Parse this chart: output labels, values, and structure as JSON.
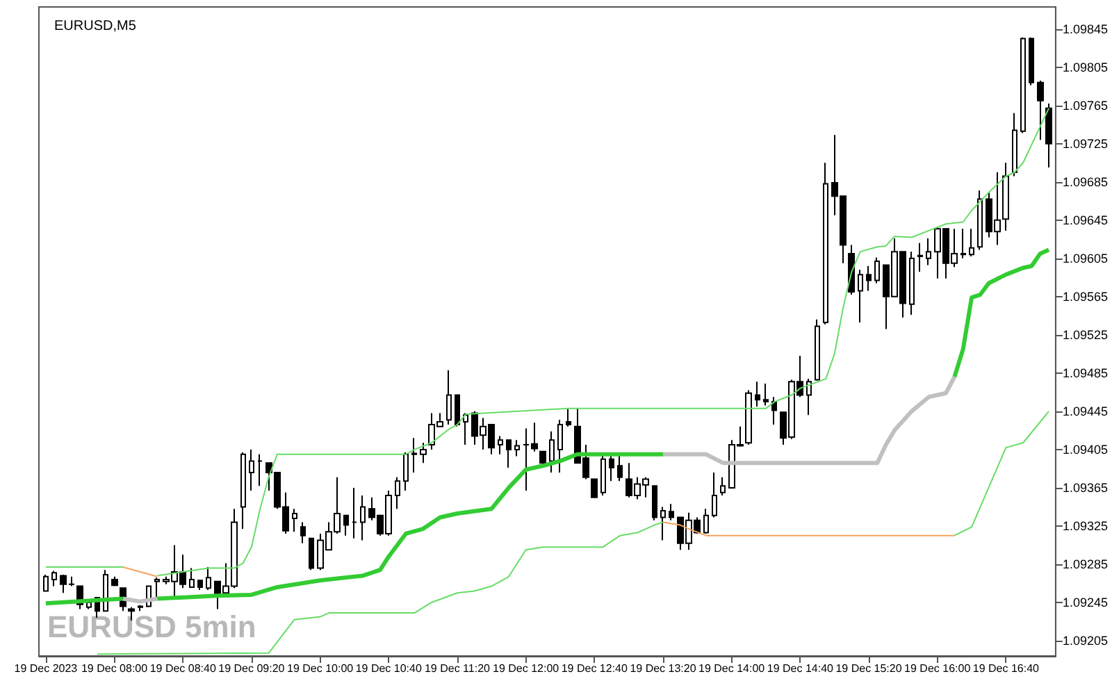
{
  "chart_data": {
    "type": "candlestick",
    "title": "EURUSD,M5",
    "annotations": [
      "EURUSD 5min"
    ],
    "x": [
      "2023-12-19T07:20",
      "2023-12-19T07:25",
      "2023-12-19T07:30",
      "2023-12-19T07:35",
      "2023-12-19T07:40",
      "2023-12-19T07:45",
      "2023-12-19T07:50",
      "2023-12-19T07:55",
      "2023-12-19T08:00",
      "2023-12-19T08:05",
      "2023-12-19T08:10",
      "2023-12-19T08:15",
      "2023-12-19T08:20",
      "2023-12-19T08:25",
      "2023-12-19T08:30",
      "2023-12-19T08:35",
      "2023-12-19T08:40",
      "2023-12-19T08:45",
      "2023-12-19T08:50",
      "2023-12-19T08:55",
      "2023-12-19T09:00",
      "2023-12-19T09:05",
      "2023-12-19T09:10",
      "2023-12-19T09:15",
      "2023-12-19T09:20",
      "2023-12-19T09:25",
      "2023-12-19T09:30",
      "2023-12-19T09:35",
      "2023-12-19T09:40",
      "2023-12-19T09:45",
      "2023-12-19T09:50",
      "2023-12-19T09:55",
      "2023-12-19T10:00",
      "2023-12-19T10:05",
      "2023-12-19T10:10",
      "2023-12-19T10:15",
      "2023-12-19T10:20",
      "2023-12-19T10:25",
      "2023-12-19T10:30",
      "2023-12-19T10:35",
      "2023-12-19T10:40",
      "2023-12-19T10:45",
      "2023-12-19T10:50",
      "2023-12-19T10:55",
      "2023-12-19T11:00",
      "2023-12-19T11:05",
      "2023-12-19T11:10",
      "2023-12-19T11:15",
      "2023-12-19T11:20",
      "2023-12-19T11:25",
      "2023-12-19T11:30",
      "2023-12-19T11:35",
      "2023-12-19T11:40",
      "2023-12-19T11:45",
      "2023-12-19T11:50",
      "2023-12-19T11:55",
      "2023-12-19T12:00",
      "2023-12-19T12:05",
      "2023-12-19T12:10",
      "2023-12-19T12:15",
      "2023-12-19T12:20",
      "2023-12-19T12:25",
      "2023-12-19T12:30",
      "2023-12-19T12:35",
      "2023-12-19T12:40",
      "2023-12-19T12:45",
      "2023-12-19T12:50",
      "2023-12-19T12:55",
      "2023-12-19T13:00",
      "2023-12-19T13:05",
      "2023-12-19T13:10",
      "2023-12-19T13:15",
      "2023-12-19T13:20",
      "2023-12-19T13:25",
      "2023-12-19T13:30",
      "2023-12-19T13:35",
      "2023-12-19T13:40",
      "2023-12-19T13:45",
      "2023-12-19T13:50",
      "2023-12-19T13:55",
      "2023-12-19T14:00",
      "2023-12-19T14:05",
      "2023-12-19T14:10",
      "2023-12-19T14:15",
      "2023-12-19T14:20",
      "2023-12-19T14:25",
      "2023-12-19T14:30",
      "2023-12-19T14:35",
      "2023-12-19T14:40",
      "2023-12-19T14:45",
      "2023-12-19T14:50",
      "2023-12-19T14:55",
      "2023-12-19T15:00",
      "2023-12-19T15:05",
      "2023-12-19T15:10",
      "2023-12-19T15:15",
      "2023-12-19T15:20",
      "2023-12-19T15:25",
      "2023-12-19T15:30",
      "2023-12-19T15:35",
      "2023-12-19T15:40",
      "2023-12-19T15:45",
      "2023-12-19T15:50",
      "2023-12-19T15:55",
      "2023-12-19T16:00",
      "2023-12-19T16:05",
      "2023-12-19T16:10",
      "2023-12-19T16:15",
      "2023-12-19T16:20",
      "2023-12-19T16:25",
      "2023-12-19T16:30",
      "2023-12-19T16:35",
      "2023-12-19T16:40",
      "2023-12-19T16:45",
      "2023-12-19T16:50",
      "2023-12-19T16:55",
      "2023-12-19T17:00",
      "2023-12-19T17:05"
    ],
    "xlim": [
      "2023-12-19T07:16",
      "2023-12-19T17:09"
    ],
    "xticks": [
      {
        "value": "2023-12-19T07:20",
        "label": "19 Dec 2023"
      },
      {
        "value": "2023-12-19T08:00",
        "label": "19 Dec 08:00"
      },
      {
        "value": "2023-12-19T08:40",
        "label": "19 Dec 08:40"
      },
      {
        "value": "2023-12-19T09:20",
        "label": "19 Dec 09:20"
      },
      {
        "value": "2023-12-19T10:00",
        "label": "19 Dec 10:00"
      },
      {
        "value": "2023-12-19T10:40",
        "label": "19 Dec 10:40"
      },
      {
        "value": "2023-12-19T11:20",
        "label": "19 Dec 11:20"
      },
      {
        "value": "2023-12-19T12:00",
        "label": "19 Dec 12:00"
      },
      {
        "value": "2023-12-19T12:40",
        "label": "19 Dec 12:40"
      },
      {
        "value": "2023-12-19T13:20",
        "label": "19 Dec 13:20"
      },
      {
        "value": "2023-12-19T14:00",
        "label": "19 Dec 14:00"
      },
      {
        "value": "2023-12-19T14:40",
        "label": "19 Dec 14:40"
      },
      {
        "value": "2023-12-19T15:20",
        "label": "19 Dec 15:20"
      },
      {
        "value": "2023-12-19T16:00",
        "label": "19 Dec 16:00"
      },
      {
        "value": "2023-12-19T16:40",
        "label": "19 Dec 16:40"
      }
    ],
    "ylim": [
      1.09189,
      1.09868
    ],
    "yticks": [
      1.09205,
      1.09245,
      1.09285,
      1.09325,
      1.09365,
      1.09405,
      1.09445,
      1.09485,
      1.09525,
      1.09565,
      1.09605,
      1.09645,
      1.09685,
      1.09725,
      1.09765,
      1.09805,
      1.09845
    ],
    "grid": false,
    "series": [
      {
        "type": "line",
        "color": "#66dd66",
        "x": [
          "2023-12-19T07:20",
          "2023-12-19T08:05",
          "2023-12-19T08:15",
          "2023-12-19T08:25",
          "2023-12-19T08:55",
          "2023-12-19T09:10",
          "2023-12-19T09:15",
          "2023-12-19T09:20",
          "2023-12-19T09:25",
          "2023-12-19T09:30",
          "2023-12-19T09:35",
          "2023-12-19T10:50",
          "2023-12-19T10:55",
          "2023-12-19T11:05",
          "2023-12-19T11:15",
          "2023-12-19T11:20",
          "2023-12-19T11:25",
          "2023-12-19T12:25",
          "2023-12-19T14:20",
          "2023-12-19T14:25",
          "2023-12-19T14:35",
          "2023-12-19T14:40",
          "2023-12-19T14:55",
          "2023-12-19T15:00",
          "2023-12-19T15:05",
          "2023-12-19T15:10",
          "2023-12-19T15:15",
          "2023-12-19T15:25",
          "2023-12-19T15:30",
          "2023-12-19T15:35",
          "2023-12-19T15:45",
          "2023-12-19T15:55",
          "2023-12-19T16:05",
          "2023-12-19T16:15",
          "2023-12-19T16:20",
          "2023-12-19T16:30",
          "2023-12-19T16:40",
          "2023-12-19T16:45",
          "2023-12-19T16:50",
          "2023-12-19T17:00",
          "2023-12-19T17:05"
        ],
        "values": [
          1.09282,
          1.09282,
          null,
          1.09273,
          1.09281,
          1.09281,
          1.09286,
          1.09303,
          1.09343,
          1.09376,
          1.094,
          1.094,
          1.09405,
          1.09412,
          1.09426,
          1.09431,
          1.09442,
          1.09448,
          1.09448,
          1.09455,
          1.09462,
          1.09469,
          1.09479,
          1.09505,
          1.09553,
          1.09591,
          1.09612,
          1.09617,
          1.09618,
          1.09628,
          1.09627,
          1.09634,
          1.09641,
          1.09643,
          1.09655,
          1.09674,
          1.09691,
          1.09695,
          1.09705,
          1.09743,
          1.09762
        ]
      },
      {
        "type": "line",
        "color": "#66dd66",
        "x": [
          "2023-12-19T07:50",
          "2023-12-19T09:30",
          "2023-12-19T09:45",
          "2023-12-19T10:00",
          "2023-12-19T10:05",
          "2023-12-19T10:55",
          "2023-12-19T11:05",
          "2023-12-19T11:20",
          "2023-12-19T11:30",
          "2023-12-19T11:40",
          "2023-12-19T11:50",
          "2023-12-19T12:00",
          "2023-12-19T12:10",
          "2023-12-19T12:45",
          "2023-12-19T12:55",
          "2023-12-19T13:05",
          "2023-12-19T13:15",
          "2023-12-19T13:20",
          "2023-12-19T14:50",
          "2023-12-19T16:10",
          "2023-12-19T16:20",
          "2023-12-19T16:40",
          "2023-12-19T16:50",
          "2023-12-19T17:05"
        ],
        "values": [
          1.09191,
          1.09192,
          1.09227,
          1.0923,
          1.09234,
          1.09234,
          1.09245,
          1.09255,
          1.09257,
          1.09262,
          1.09272,
          1.093,
          1.09303,
          1.09303,
          1.09315,
          1.09318,
          1.09326,
          1.09329,
          null,
          1.09315,
          1.09324,
          1.09407,
          1.09412,
          1.09445
        ]
      },
      {
        "type": "line",
        "color": "#f4a460",
        "x": [
          "2023-12-19T08:05",
          "2023-12-19T08:25",
          "2023-12-19T10:40",
          "2023-12-19T13:20",
          "2023-12-19T13:30",
          "2023-12-19T13:35",
          "2023-12-19T13:45",
          "2023-12-19T16:10"
        ],
        "values": [
          1.09282,
          1.09272,
          null,
          1.09329,
          1.09326,
          1.09322,
          1.09315,
          1.09315
        ]
      },
      {
        "type": "line",
        "color": "#33cc33",
        "x": [
          "2023-12-19T07:20",
          "2023-12-19T08:05",
          "2023-12-19T08:10",
          "2023-12-19T08:25",
          "2023-12-19T09:00",
          "2023-12-19T09:20",
          "2023-12-19T09:35",
          "2023-12-19T10:00",
          "2023-12-19T10:25",
          "2023-12-19T10:35",
          "2023-12-19T10:40",
          "2023-12-19T10:50",
          "2023-12-19T11:00",
          "2023-12-19T11:10",
          "2023-12-19T11:20",
          "2023-12-19T11:40",
          "2023-12-19T11:50",
          "2023-12-19T12:00",
          "2023-12-19T12:10",
          "2023-12-19T12:20",
          "2023-12-19T12:30",
          "2023-12-19T13:20",
          "2023-12-19T14:00",
          "2023-12-19T16:10",
          "2023-12-19T16:15",
          "2023-12-19T16:20",
          "2023-12-19T16:25",
          "2023-12-19T16:30",
          "2023-12-19T16:40",
          "2023-12-19T16:50",
          "2023-12-19T16:55",
          "2023-12-19T17:00",
          "2023-12-19T17:05"
        ],
        "values": [
          1.09244,
          1.09249,
          null,
          1.09249,
          1.09252,
          1.09253,
          1.09261,
          1.09268,
          1.09273,
          1.09279,
          1.09293,
          1.09317,
          1.09322,
          1.09334,
          1.09338,
          1.09343,
          1.09365,
          1.09384,
          1.09388,
          1.09393,
          1.094,
          1.094,
          null,
          1.09481,
          1.0951,
          1.09564,
          1.09567,
          1.09579,
          1.09588,
          1.09595,
          1.09597,
          1.0961,
          1.09614
        ]
      },
      {
        "type": "line",
        "color": "#c0c0c0",
        "x": [
          "2023-12-19T08:05",
          "2023-12-19T08:15",
          "2023-12-19T08:25",
          "2023-12-19T10:00",
          "2023-12-19T13:20",
          "2023-12-19T13:45",
          "2023-12-19T13:55",
          "2023-12-19T15:25",
          "2023-12-19T15:30",
          "2023-12-19T15:35",
          "2023-12-19T15:45",
          "2023-12-19T15:55",
          "2023-12-19T16:05",
          "2023-12-19T16:10"
        ],
        "values": [
          1.09249,
          1.09246,
          1.09249,
          null,
          1.094,
          1.094,
          1.09391,
          1.09391,
          1.0941,
          1.09425,
          1.09445,
          1.0946,
          1.09464,
          1.09481
        ]
      },
      {
        "color": "#000000",
        "ohlc": [
          [
            1.09257,
            1.09274,
            1.09257,
            1.09272
          ],
          [
            1.09269,
            1.09278,
            1.09262,
            1.09276
          ],
          [
            1.09273,
            1.09274,
            1.09255,
            1.09264
          ],
          [
            1.09264,
            1.09272,
            1.09262,
            1.09264
          ],
          [
            1.09262,
            1.09262,
            1.09238,
            1.09243
          ],
          [
            1.0924,
            1.09248,
            1.09238,
            1.09245
          ],
          [
            1.0925,
            1.0925,
            1.09229,
            1.09236
          ],
          [
            1.09236,
            1.09279,
            1.09236,
            1.09274
          ],
          [
            1.09269,
            1.09272,
            1.09262,
            1.09263
          ],
          [
            1.0926,
            1.0926,
            1.09236,
            1.09241
          ],
          [
            1.09238,
            1.0924,
            1.09226,
            1.09236
          ],
          [
            1.0924,
            1.09242,
            1.09236,
            1.09241
          ],
          [
            1.09241,
            1.09262,
            1.0924,
            1.09262
          ],
          [
            1.09267,
            1.09271,
            1.09248,
            1.09269
          ],
          [
            1.09267,
            1.09272,
            1.09264,
            1.09269
          ],
          [
            1.09267,
            1.09305,
            1.09248,
            1.09277
          ],
          [
            1.09277,
            1.09295,
            1.0926,
            1.09264
          ],
          [
            1.09261,
            1.09281,
            1.09261,
            1.09269
          ],
          [
            1.09268,
            1.09268,
            1.09258,
            1.09261
          ],
          [
            1.0926,
            1.09282,
            1.09258,
            1.09271
          ],
          [
            1.09267,
            1.09267,
            1.09238,
            1.09253
          ],
          [
            1.09255,
            1.09286,
            1.09252,
            1.09262
          ],
          [
            1.09262,
            1.09343,
            1.0926,
            1.09329
          ],
          [
            1.09345,
            1.09402,
            1.09322,
            1.094
          ],
          [
            1.09381,
            1.09405,
            1.09362,
            1.09393
          ],
          [
            1.09393,
            1.094,
            1.09367,
            1.09393
          ],
          [
            1.09391,
            1.09391,
            1.09362,
            1.09381
          ],
          [
            1.09381,
            1.09381,
            1.09343,
            1.09345
          ],
          [
            1.09345,
            1.0936,
            1.09317,
            1.0932
          ],
          [
            1.09333,
            1.09343,
            1.09319,
            1.09338
          ],
          [
            1.09324,
            1.09329,
            1.09307,
            1.09315
          ],
          [
            1.09312,
            1.09312,
            1.09279,
            1.09281
          ],
          [
            1.09281,
            1.09317,
            1.09279,
            1.0931
          ],
          [
            1.093,
            1.09329,
            1.093,
            1.09319
          ],
          [
            1.09319,
            1.09376,
            1.09317,
            1.09338
          ],
          [
            1.09336,
            1.09336,
            1.09315,
            1.09326
          ],
          [
            1.09329,
            1.09365,
            1.09312,
            1.09329
          ],
          [
            1.09329,
            1.09357,
            1.0931,
            1.09345
          ],
          [
            1.09343,
            1.09355,
            1.09331,
            1.09334
          ],
          [
            1.09336,
            1.09336,
            1.09315,
            1.09317
          ],
          [
            1.09317,
            1.09362,
            1.09315,
            1.09357
          ],
          [
            1.09357,
            1.09376,
            1.09343,
            1.09372
          ],
          [
            1.09372,
            1.09402,
            1.09362,
            1.094
          ],
          [
            1.094,
            1.09417,
            1.09381,
            1.09401
          ],
          [
            1.094,
            1.09412,
            1.09391,
            1.09405
          ],
          [
            1.0941,
            1.09443,
            1.09405,
            1.09431
          ],
          [
            1.09429,
            1.09443,
            1.09429,
            1.09434
          ],
          [
            1.09436,
            1.09488,
            1.09431,
            1.09462
          ],
          [
            1.09462,
            1.09462,
            1.09429,
            1.09431
          ],
          [
            1.09434,
            1.09443,
            1.0941,
            1.09441
          ],
          [
            1.09443,
            1.09445,
            1.0941,
            1.09419
          ],
          [
            1.0942,
            1.09438,
            1.09405,
            1.09429
          ],
          [
            1.09431,
            1.09431,
            1.094,
            1.09407
          ],
          [
            1.0941,
            1.09419,
            1.094,
            1.09415
          ],
          [
            1.09415,
            1.09415,
            1.09386,
            1.09405
          ],
          [
            1.09405,
            1.09415,
            1.09398,
            1.09409
          ],
          [
            1.0941,
            1.09427,
            1.09362,
            1.0941
          ],
          [
            1.09411,
            1.09433,
            1.09403,
            1.09406
          ],
          [
            1.09403,
            1.09403,
            1.09388,
            1.09391
          ],
          [
            1.09393,
            1.09424,
            1.09381,
            1.09415
          ],
          [
            1.09405,
            1.09436,
            1.09381,
            1.09431
          ],
          [
            1.09434,
            1.09448,
            1.09429,
            1.09431
          ],
          [
            1.09429,
            1.09448,
            1.09391,
            1.09391
          ],
          [
            1.09396,
            1.0941,
            1.09374,
            1.09376
          ],
          [
            1.09374,
            1.09374,
            1.09355,
            1.09355
          ],
          [
            1.0936,
            1.094,
            1.09357,
            1.09395
          ],
          [
            1.09395,
            1.09402,
            1.09372,
            1.09386
          ],
          [
            1.09388,
            1.094,
            1.09372,
            1.09376
          ],
          [
            1.09374,
            1.09391,
            1.09355,
            1.09357
          ],
          [
            1.09357,
            1.09376,
            1.09353,
            1.09369
          ],
          [
            1.09368,
            1.09376,
            1.09355,
            1.09374
          ],
          [
            1.09367,
            1.09367,
            1.09331,
            1.09334
          ],
          [
            1.09334,
            1.09345,
            1.0931,
            1.09341
          ],
          [
            1.0934,
            1.09348,
            1.09331,
            1.09334
          ],
          [
            1.09334,
            1.09334,
            1.093,
            1.09307
          ],
          [
            1.09307,
            1.09339,
            1.093,
            1.09331
          ],
          [
            1.09331,
            1.09334,
            1.09317,
            1.09318
          ],
          [
            1.09318,
            1.09343,
            1.09317,
            1.09336
          ],
          [
            1.09336,
            1.09381,
            1.09334,
            1.09357
          ],
          [
            1.0936,
            1.09376,
            1.09357,
            1.09367
          ],
          [
            1.09365,
            1.09415,
            1.09364,
            1.0941
          ],
          [
            1.09409,
            1.09429,
            1.09408,
            1.0941
          ],
          [
            1.09412,
            1.09467,
            1.0941,
            1.09464
          ],
          [
            1.09462,
            1.09476,
            1.0945,
            1.09457
          ],
          [
            1.09457,
            1.09474,
            1.09451,
            1.09455
          ],
          [
            1.09455,
            1.0946,
            1.09431,
            1.09446
          ],
          [
            1.09444,
            1.09444,
            1.0941,
            1.09417
          ],
          [
            1.09418,
            1.09478,
            1.09416,
            1.09476
          ],
          [
            1.09476,
            1.09503,
            1.0946,
            1.09462
          ],
          [
            1.09462,
            1.09479,
            1.09441,
            1.09476
          ],
          [
            1.09478,
            1.09541,
            1.09477,
            1.09534
          ],
          [
            1.09538,
            1.09705,
            1.09536,
            1.09683
          ],
          [
            1.09684,
            1.09734,
            1.0965,
            1.0967
          ],
          [
            1.0967,
            1.0967,
            1.096,
            1.09619
          ],
          [
            1.0961,
            1.09619,
            1.09567,
            1.0957
          ],
          [
            1.09571,
            1.09593,
            1.09538,
            1.09588
          ],
          [
            1.09588,
            1.09597,
            1.09571,
            1.09582
          ],
          [
            1.09582,
            1.09606,
            1.09579,
            1.09602
          ],
          [
            1.09598,
            1.09598,
            1.09531,
            1.09565
          ],
          [
            1.09565,
            1.09626,
            1.09565,
            1.09612
          ],
          [
            1.09612,
            1.09612,
            1.09543,
            1.09558
          ],
          [
            1.09557,
            1.09612,
            1.09546,
            1.09605
          ],
          [
            1.09607,
            1.09621,
            1.09591,
            1.09608
          ],
          [
            1.09605,
            1.09626,
            1.09598,
            1.09612
          ],
          [
            1.09612,
            1.09638,
            1.09584,
            1.09636
          ],
          [
            1.09636,
            1.09636,
            1.09584,
            1.096
          ],
          [
            1.096,
            1.09636,
            1.09596,
            1.0961
          ],
          [
            1.09609,
            1.09636,
            1.09605,
            1.0961
          ],
          [
            1.09609,
            1.09636,
            1.09607,
            1.09616
          ],
          [
            1.09617,
            1.09676,
            1.09614,
            1.09667
          ],
          [
            1.09667,
            1.09674,
            1.09627,
            1.09633
          ],
          [
            1.09633,
            1.09695,
            1.09619,
            1.09645
          ],
          [
            1.09646,
            1.09705,
            1.09634,
            1.09691
          ],
          [
            1.09695,
            1.09757,
            1.09691,
            1.09739
          ],
          [
            1.09738,
            1.09836,
            1.09736,
            1.09835
          ],
          [
            1.09835,
            1.09836,
            1.09786,
            1.09789
          ],
          [
            1.09789,
            1.09791,
            1.09729,
            1.0977
          ],
          [
            1.09762,
            1.09767,
            1.097,
            1.09725
          ]
        ]
      }
    ]
  }
}
